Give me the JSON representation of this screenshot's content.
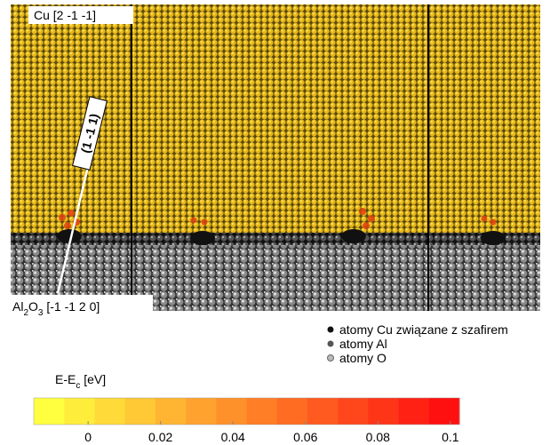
{
  "figure": {
    "cu_label": "Cu [2 -1 -1]",
    "plane_label": "(1 -1 1)",
    "substrate_label": [
      "Al",
      "2",
      "O",
      "3",
      " [-1 -1 2 0]"
    ],
    "legend": [
      "atomy Cu związane z szafirem",
      "atomy Al",
      "atomy O"
    ]
  },
  "colorbar": {
    "label": [
      "E-E",
      "c",
      " [eV]"
    ],
    "lim": [
      -0.015,
      0.1025
    ],
    "ticks": [
      0,
      0.02,
      0.04,
      0.06,
      0.08,
      0.1
    ],
    "colors": [
      "#ffff40",
      "#ff1010"
    ]
  }
}
